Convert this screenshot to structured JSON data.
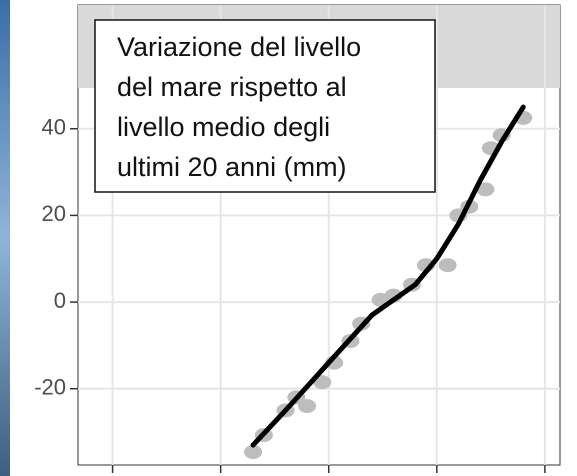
{
  "chart_data": {
    "type": "scatter",
    "title_lines": [
      "Variazione del livello",
      "del mare rispetto al",
      "livello medio degli",
      "ultimi 20 anni (mm)"
    ],
    "points": {
      "color": "#bdbdbd",
      "x": [
        1993,
        1994,
        1996,
        1997,
        1998,
        1999.4,
        2000.5,
        2002,
        2003,
        2004.8,
        2006,
        2007.7,
        2009,
        2011,
        2012,
        2013,
        2014.5,
        2015,
        2016,
        2018
      ],
      "values": [
        -34.6,
        -30.7,
        -25,
        -22,
        -24,
        -18.5,
        -14,
        -9,
        -5,
        0.5,
        1.5,
        4,
        8.5,
        8.5,
        20,
        22,
        26,
        35.5,
        38.5,
        42.5
      ]
    },
    "trend": {
      "color": "#000000",
      "x": [
        1993,
        1996,
        2000,
        2004,
        2008,
        2010,
        2012,
        2014,
        2016,
        2018
      ],
      "values": [
        -33,
        -25,
        -14,
        -3,
        4,
        10,
        18,
        28,
        37,
        45
      ]
    },
    "xlim": [
      1976.8,
      2021.4
    ],
    "xticks": [
      1980,
      1990,
      2000,
      2010,
      2020
    ],
    "ylim": [
      -37.6,
      49.4
    ],
    "yticks": [
      -20,
      0,
      20,
      40
    ],
    "grid": true
  }
}
